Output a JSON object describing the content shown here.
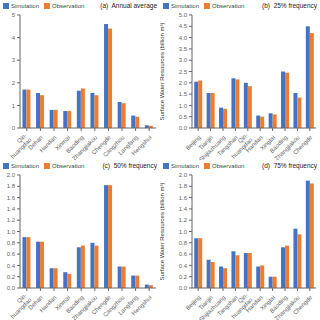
{
  "chart_data": [
    {
      "type": "bar",
      "title": "(a)  Annual average",
      "legend": "upper left",
      "grid": false,
      "categories": [
        "Qin-\nhuangdao",
        "Dehan",
        "Handan",
        "Xinmai",
        "Baoding",
        "Zhangjiakou",
        "Chengde",
        "Cangzhou",
        "Langfang",
        "Hengshui"
      ],
      "series": [
        {
          "name": "Simulation",
          "color": "#4472C4",
          "values": [
            1.7,
            1.55,
            0.8,
            0.75,
            1.65,
            1.55,
            4.6,
            1.15,
            0.55,
            0.12
          ]
        },
        {
          "name": "Observation",
          "color": "#ED7D31",
          "values": [
            1.7,
            1.45,
            0.8,
            0.75,
            1.75,
            1.45,
            4.4,
            1.1,
            0.5,
            0.1
          ]
        }
      ],
      "ylim": [
        0,
        5
      ],
      "yticks": [
        0,
        1,
        2,
        3,
        4,
        5
      ]
    },
    {
      "type": "bar",
      "title": "(b)  25% frequency",
      "y_label": "Surface Water Resources (billion m³)",
      "legend": "upper left",
      "grid": false,
      "categories": [
        "Beijing",
        "Tianjin",
        "Shijiazhuang",
        "Tangshan",
        "Qin-\nhuangdao",
        "Handan",
        "Xingtai",
        "Baoding",
        "Zhangjiakou",
        "Chengde"
      ],
      "series": [
        {
          "name": "Simulation",
          "color": "#4472C4",
          "values": [
            2.05,
            1.55,
            0.9,
            2.2,
            2.0,
            0.55,
            0.65,
            2.5,
            1.55,
            4.5
          ]
        },
        {
          "name": "Observation",
          "color": "#ED7D31",
          "values": [
            2.1,
            1.55,
            0.85,
            2.15,
            1.85,
            0.5,
            0.6,
            2.45,
            1.35,
            4.2
          ]
        }
      ],
      "ylim": [
        0,
        5
      ],
      "yticks": [
        {
          "value": 0,
          "label": "0.0"
        },
        0.5,
        {
          "value": 1,
          "label": "1.0"
        },
        1.5,
        {
          "value": 2,
          "label": "2.0"
        },
        2.5,
        {
          "value": 3,
          "label": "3.0"
        },
        3.5,
        {
          "value": 4,
          "label": "4.0"
        },
        4.5,
        {
          "value": 5,
          "label": "5.0"
        }
      ]
    },
    {
      "type": "bar",
      "title": "(c)  50% frequency",
      "legend": "upper left",
      "grid": false,
      "categories": [
        "Qin-\nhuangdao",
        "Dehan",
        "Handan",
        "Xinmai",
        "Baoding",
        "Zhangjiakou",
        "Chengde",
        "Cangzhou",
        "Langfang",
        "Hengshui"
      ],
      "series": [
        {
          "name": "Simulation",
          "color": "#4472C4",
          "values": [
            0.9,
            0.82,
            0.35,
            0.28,
            0.72,
            0.8,
            1.82,
            0.38,
            0.22,
            0.06
          ]
        },
        {
          "name": "Observation",
          "color": "#ED7D31",
          "values": [
            0.9,
            0.82,
            0.35,
            0.25,
            0.75,
            0.75,
            1.82,
            0.38,
            0.22,
            0.05
          ]
        }
      ],
      "ylim": [
        0,
        2
      ],
      "yticks": [
        {
          "value": 0,
          "label": "0.0"
        },
        0.2,
        0.4,
        0.6,
        0.8,
        {
          "value": 1,
          "label": "1.0"
        },
        1.2,
        1.4,
        1.6,
        1.8,
        {
          "value": 2,
          "label": "2.0"
        }
      ]
    },
    {
      "type": "bar",
      "title": "(d)  75% frequency",
      "y_label": "Surface Water Resources (billion m³)",
      "legend": "upper left",
      "grid": false,
      "categories": [
        "Beijing",
        "Tianjin",
        "Shijiazhuang",
        "Tangshan",
        "Qin-\nhuangdao",
        "Handan",
        "Xingtai",
        "Baoding",
        "Zhangjiakou",
        "Chengde"
      ],
      "series": [
        {
          "name": "Simulation",
          "color": "#4472C4",
          "values": [
            0.88,
            0.5,
            0.38,
            0.65,
            0.62,
            0.38,
            0.2,
            0.72,
            1.05,
            1.9
          ]
        },
        {
          "name": "Observation",
          "color": "#ED7D31",
          "values": [
            0.88,
            0.46,
            0.35,
            0.58,
            0.62,
            0.4,
            0.2,
            0.75,
            0.95,
            1.85
          ]
        }
      ],
      "ylim": [
        0,
        2
      ],
      "yticks": [
        {
          "value": 0,
          "label": "0.0"
        },
        0.2,
        0.4,
        0.6,
        0.8,
        {
          "value": 1,
          "label": "1.0"
        },
        1.2,
        1.4,
        1.6,
        1.8,
        {
          "value": 2,
          "label": "2.0"
        }
      ]
    }
  ]
}
